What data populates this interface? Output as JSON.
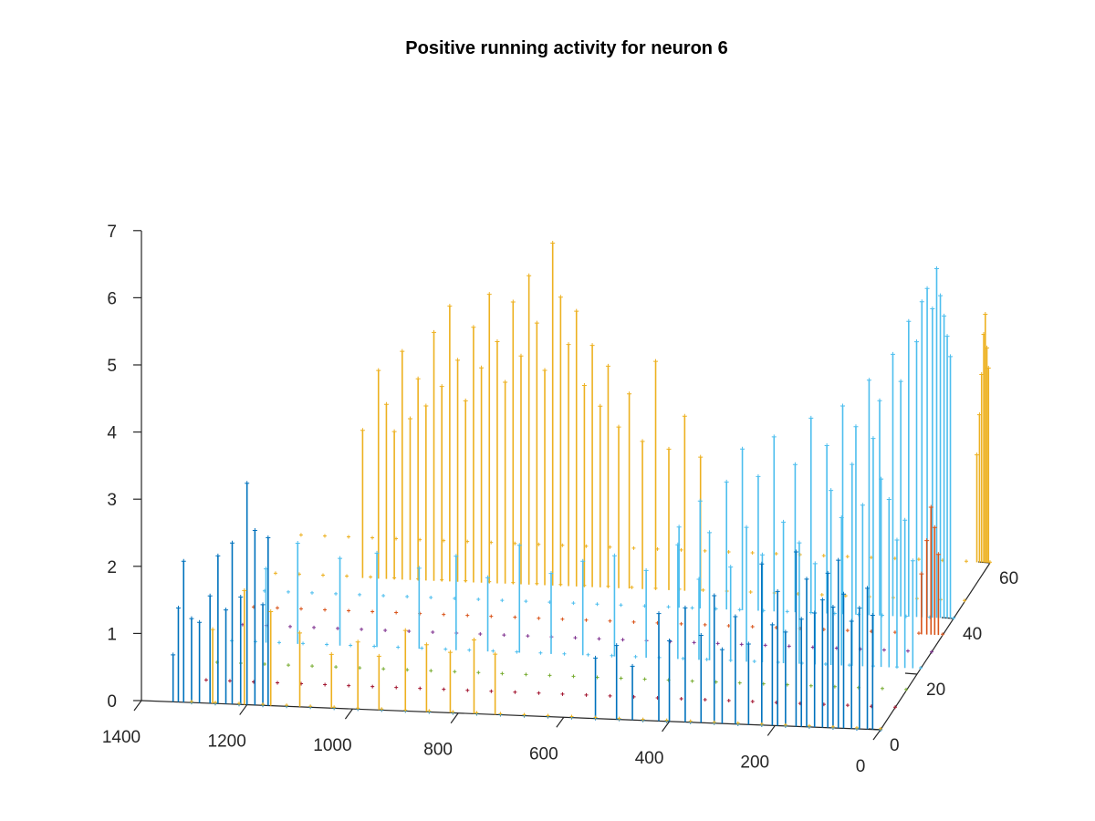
{
  "chart_data": {
    "type": "stem3",
    "title": "Positive running activity for neuron 6",
    "xlabel": "",
    "ylabel": "",
    "zlabel": "",
    "xlim": [
      0,
      1400
    ],
    "ylim": [
      0,
      60
    ],
    "zlim": [
      0,
      7
    ],
    "x_ticks": [
      "0",
      "200",
      "400",
      "600",
      "800",
      "1000",
      "1200",
      "1400"
    ],
    "y_ticks": [
      "0",
      "20",
      "40",
      "60"
    ],
    "z_ticks": [
      "0",
      "1",
      "2",
      "3",
      "4",
      "5",
      "6",
      "7"
    ],
    "grid": false,
    "marker": "+",
    "colors": {
      "dark_blue": "#0072BD",
      "light_blue": "#4DBEEE",
      "yellow": "#EDB120",
      "red": "#D95319",
      "purple": "#7E2F8E",
      "green": "#77AC30",
      "dark_red": "#A2142F"
    },
    "series": [
      {
        "color": "#0072BD",
        "y": 0,
        "points": [
          [
            1340,
            0.7
          ],
          [
            1330,
            1.4
          ],
          [
            1320,
            2.1
          ],
          [
            1305,
            1.25
          ],
          [
            1290,
            1.2
          ],
          [
            1270,
            1.6
          ],
          [
            1255,
            2.2
          ],
          [
            1240,
            1.4
          ],
          [
            1228,
            2.4
          ],
          [
            1212,
            1.6
          ],
          [
            1200,
            3.3
          ],
          [
            1185,
            2.6
          ],
          [
            1170,
            1.5
          ],
          [
            1160,
            2.5
          ],
          [
            540,
            0.9
          ],
          [
            500,
            1.1
          ],
          [
            470,
            0.8
          ],
          [
            420,
            1.6
          ],
          [
            400,
            1.2
          ],
          [
            370,
            1.7
          ],
          [
            340,
            1.3
          ],
          [
            315,
            1.9
          ],
          [
            300,
            1.1
          ],
          [
            275,
            1.6
          ],
          [
            250,
            1.2
          ],
          [
            225,
            2.4
          ],
          [
            205,
            1.5
          ],
          [
            195,
            2.0
          ],
          [
            180,
            1.4
          ],
          [
            160,
            2.6
          ],
          [
            150,
            1.6
          ],
          [
            140,
            2.2
          ],
          [
            125,
            1.7
          ],
          [
            110,
            1.9
          ],
          [
            100,
            2.3
          ],
          [
            90,
            1.8
          ],
          [
            80,
            2.5
          ],
          [
            70,
            2.0
          ],
          [
            55,
            1.6
          ],
          [
            40,
            1.8
          ],
          [
            25,
            2.1
          ],
          [
            15,
            1.7
          ]
        ]
      },
      {
        "color": "#EDB120",
        "y": 0,
        "points": [
          [
            1265,
            1.1
          ],
          [
            1205,
            1.7
          ],
          [
            1155,
            1.4
          ],
          [
            1100,
            1.1
          ],
          [
            1040,
            0.8
          ],
          [
            990,
            1.0
          ],
          [
            950,
            0.8
          ],
          [
            900,
            1.2
          ],
          [
            860,
            1.0
          ],
          [
            815,
            0.9
          ],
          [
            770,
            1.1
          ],
          [
            730,
            0.9
          ]
        ]
      },
      {
        "color": "#A2142F",
        "y": 8,
        "points": []
      },
      {
        "color": "#77AC30",
        "y": 14,
        "points": []
      },
      {
        "color": "#4DBEEE",
        "y": 22,
        "points": [
          [
            1240,
            1.1
          ],
          [
            1180,
            1.5
          ],
          [
            1100,
            1.3
          ],
          [
            1030,
            1.4
          ],
          [
            950,
            1.2
          ],
          [
            880,
            1.4
          ],
          [
            820,
            1.1
          ],
          [
            760,
            1.6
          ],
          [
            700,
            1.2
          ],
          [
            640,
            1.4
          ],
          [
            580,
            1.5
          ],
          [
            520,
            1.3
          ],
          [
            460,
            1.7
          ],
          [
            420,
            1.2
          ],
          [
            400,
            1.9
          ],
          [
            360,
            1.4
          ],
          [
            330,
            2.0
          ],
          [
            300,
            1.6
          ],
          [
            260,
            2.1
          ],
          [
            230,
            1.8
          ],
          [
            200,
            1.5
          ],
          [
            170,
            2.6
          ],
          [
            150,
            2.2
          ],
          [
            130,
            3.0
          ],
          [
            110,
            2.4
          ],
          [
            90,
            3.4
          ],
          [
            75,
            2.8
          ],
          [
            60,
            2.5
          ],
          [
            45,
            1.9
          ],
          [
            30,
            2.2
          ],
          [
            15,
            1.6
          ]
        ]
      },
      {
        "color": "#7E2F8E",
        "y": 28,
        "points": []
      },
      {
        "color": "#D95319",
        "y": 34,
        "points": [
          [
            40,
            0.9
          ],
          [
            30,
            1.4
          ],
          [
            22,
            1.9
          ],
          [
            15,
            1.6
          ],
          [
            8,
            1.2
          ]
        ]
      },
      {
        "color": "#4DBEEE",
        "y": 40,
        "points": [
          [
            520,
            1.2
          ],
          [
            480,
            1.6
          ],
          [
            430,
            1.9
          ],
          [
            400,
            2.4
          ],
          [
            370,
            2.0
          ],
          [
            340,
            2.6
          ],
          [
            300,
            2.2
          ],
          [
            270,
            2.9
          ],
          [
            240,
            2.5
          ],
          [
            210,
            3.1
          ],
          [
            185,
            2.8
          ],
          [
            160,
            3.5
          ],
          [
            140,
            3.2
          ],
          [
            115,
            3.9
          ],
          [
            100,
            3.5
          ],
          [
            85,
            4.4
          ],
          [
            70,
            4.1
          ],
          [
            60,
            4.7
          ],
          [
            50,
            4.9
          ],
          [
            40,
            4.6
          ],
          [
            32,
            5.2
          ],
          [
            25,
            4.8
          ],
          [
            18,
            4.5
          ],
          [
            12,
            4.2
          ],
          [
            6,
            3.9
          ]
        ]
      },
      {
        "color": "#EDB120",
        "y": 46,
        "points": [
          [
            1140,
            2.2
          ],
          [
            1110,
            3.1
          ],
          [
            1095,
            2.6
          ],
          [
            1080,
            2.2
          ],
          [
            1065,
            3.4
          ],
          [
            1050,
            2.4
          ],
          [
            1035,
            3.0
          ],
          [
            1020,
            2.6
          ],
          [
            1005,
            3.7
          ],
          [
            990,
            2.9
          ],
          [
            975,
            4.1
          ],
          [
            960,
            3.3
          ],
          [
            945,
            2.7
          ],
          [
            930,
            3.8
          ],
          [
            915,
            3.2
          ],
          [
            900,
            4.3
          ],
          [
            885,
            3.6
          ],
          [
            870,
            3.0
          ],
          [
            855,
            4.2
          ],
          [
            840,
            3.4
          ],
          [
            825,
            4.6
          ],
          [
            810,
            3.9
          ],
          [
            795,
            3.2
          ],
          [
            780,
            5.1
          ],
          [
            765,
            4.3
          ],
          [
            750,
            3.6
          ],
          [
            735,
            4.1
          ],
          [
            720,
            3.0
          ],
          [
            705,
            3.6
          ],
          [
            690,
            2.7
          ],
          [
            675,
            3.3
          ],
          [
            655,
            2.4
          ],
          [
            635,
            2.9
          ],
          [
            610,
            2.2
          ],
          [
            585,
            3.4
          ],
          [
            560,
            2.1
          ],
          [
            530,
            2.6
          ],
          [
            500,
            2.0
          ]
        ]
      },
      {
        "color": "#EDB120",
        "y": 60,
        "points": [
          [
            25,
            1.6
          ],
          [
            20,
            2.2
          ],
          [
            16,
            2.8
          ],
          [
            12,
            3.4
          ],
          [
            9,
            3.7
          ],
          [
            6,
            3.2
          ],
          [
            3,
            2.9
          ]
        ]
      }
    ]
  }
}
